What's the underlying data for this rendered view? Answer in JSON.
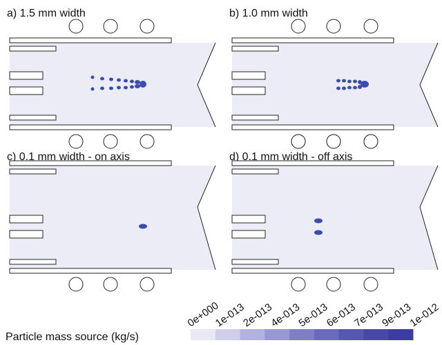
{
  "panels": [
    {
      "label": "a) 1.5 mm width"
    },
    {
      "label": "b) 1.0 mm width"
    },
    {
      "label": "c) 0.1 mm width - on axis"
    },
    {
      "label": "d) 0.1 mm width - off axis"
    }
  ],
  "colorbar": {
    "title": "Particle mass source (kg/s)",
    "ticks": [
      "0e+000",
      "1e-013",
      "2e-013",
      "4e-013",
      "5e-013",
      "6e-013",
      "7e-013",
      "9e-013",
      "1e-012"
    ],
    "colors": [
      "#e9e9f6",
      "#cfcfec",
      "#b2b2e0",
      "#9898d4",
      "#7f7fc8",
      "#6969bd",
      "#5656b3",
      "#4848a9",
      "#3c3ca4"
    ]
  },
  "colors": {
    "domain_fill": "#ececf7",
    "particle": "#3c4bb0",
    "outline": "#222222"
  }
}
